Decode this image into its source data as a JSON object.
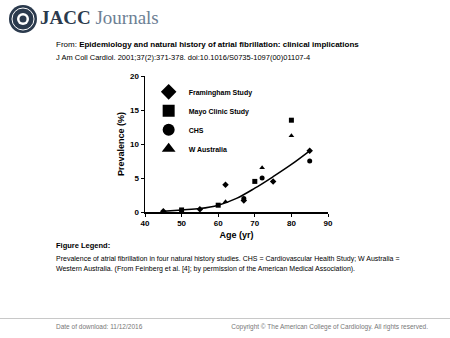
{
  "page": {
    "logo_text_bold": "JACC",
    "logo_text_light": "Journals",
    "from_label": "From:",
    "article_title": "Epidemiology and natural history of atrial fibrillation: clinical implications",
    "citation": "J Am Coll Cardiol. 2001;37(2):371-378. doi:10.1016/S0735-1097(00)01107-4",
    "figure_legend_heading": "Figure Legend:",
    "figure_legend": "Prevalence of atrial fibrillation in four natural history studies. CHS = Cardiovascular Health Study; W Australia = Western Australia. (From Feinberg et al. [4]; by permission of the American Medical Association).",
    "footer_left": "Date of download:  11/12/2016",
    "footer_right": "Copyright © The American College of Cardiology. All rights reserved."
  },
  "chart_data": {
    "type": "scatter",
    "x_label": "Age (yr)",
    "y_label": "Prevalence (%)",
    "xlim": [
      40,
      90
    ],
    "xticks": [
      40,
      50,
      60,
      70,
      80,
      90
    ],
    "ylim": [
      0,
      20
    ],
    "yticks": [
      0,
      5,
      10,
      15,
      20
    ],
    "grid": false,
    "legend": "upper left",
    "series": [
      {
        "name": null,
        "type": "line",
        "line_style": "solid",
        "color": "#000000",
        "x": [
          45,
          50,
          55,
          60,
          65,
          70,
          75,
          80,
          85
        ],
        "values": [
          0.1,
          0.3,
          0.5,
          1.0,
          2.0,
          3.5,
          5.2,
          7.0,
          9.0
        ]
      },
      {
        "name": "Framingham Study",
        "type": "scatter",
        "marker": "diamond",
        "color": "#000000",
        "x": [
          45,
          55,
          62,
          67,
          75,
          85
        ],
        "values": [
          0.1,
          0.4,
          4.0,
          1.7,
          4.5,
          9.0
        ]
      },
      {
        "name": "Mayo Clinic Study",
        "type": "scatter",
        "marker": "square",
        "color": "#000000",
        "x": [
          50,
          60,
          70,
          80
        ],
        "values": [
          0.3,
          1.0,
          4.5,
          13.5
        ]
      },
      {
        "name": "CHS",
        "type": "scatter",
        "marker": "circle",
        "color": "#000000",
        "x": [
          67,
          72,
          85
        ],
        "values": [
          2.0,
          5.0,
          7.5
        ]
      },
      {
        "name": "W Australia",
        "type": "scatter",
        "marker": "triangle-up",
        "color": "#000000",
        "x": [
          62,
          72,
          80
        ],
        "values": [
          1.5,
          6.5,
          11.2
        ]
      }
    ]
  }
}
